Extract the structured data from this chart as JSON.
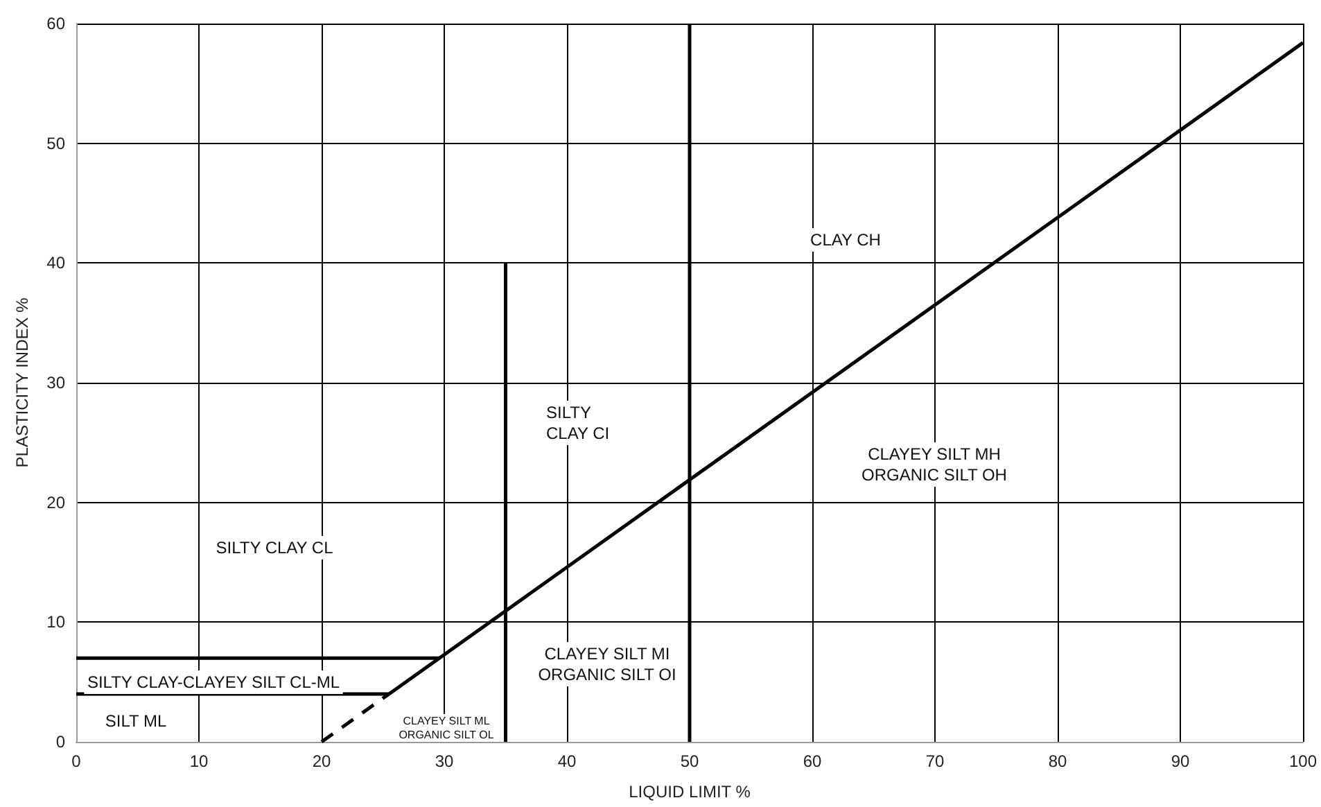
{
  "chart_data": {
    "type": "line",
    "xlabel": "LIQUID LIMIT %",
    "ylabel": "PLASTICITY INDEX %",
    "xlim": [
      0,
      100
    ],
    "xticks": [
      0,
      10,
      20,
      30,
      40,
      50,
      60,
      70,
      80,
      90,
      100
    ],
    "ylim": [
      0,
      60
    ],
    "yticks": [
      0,
      10,
      20,
      30,
      40,
      50,
      60
    ],
    "grid": true,
    "marker": "none",
    "series": [
      {
        "color": "#000000",
        "x": [
          25.5,
          100
        ],
        "values": [
          4,
          58.4
        ],
        "line_style": "solid"
      },
      {
        "color": "#000000",
        "x": [
          20,
          25.5
        ],
        "values": [
          0,
          4
        ],
        "line_style": "dashed"
      },
      {
        "color": "#000000",
        "x": [
          35,
          35
        ],
        "values": [
          0,
          40
        ],
        "line_style": "solid"
      },
      {
        "color": "#000000",
        "x": [
          50,
          50
        ],
        "values": [
          0,
          60
        ],
        "line_style": "solid"
      },
      {
        "color": "#000000",
        "x": [
          0,
          29.6
        ],
        "values": [
          7,
          7
        ],
        "line_style": "solid"
      },
      {
        "color": "#000000",
        "x": [
          0,
          25.5
        ],
        "values": [
          4,
          4
        ],
        "line_style": "solid"
      }
    ],
    "annotations": [
      "CLAY CH",
      "SILTY\nCLAY CI",
      "CLAYEY SILT MH\nORGANIC SILT OH",
      "SILTY CLAY CL",
      "CLAYEY SILT MI\nORGANIC SILT OI",
      "SILTY CLAY-CLAYEY SILT CL-ML",
      "SILT ML",
      "CLAYEY SILT ML\nORGANIC SILT OL"
    ]
  }
}
